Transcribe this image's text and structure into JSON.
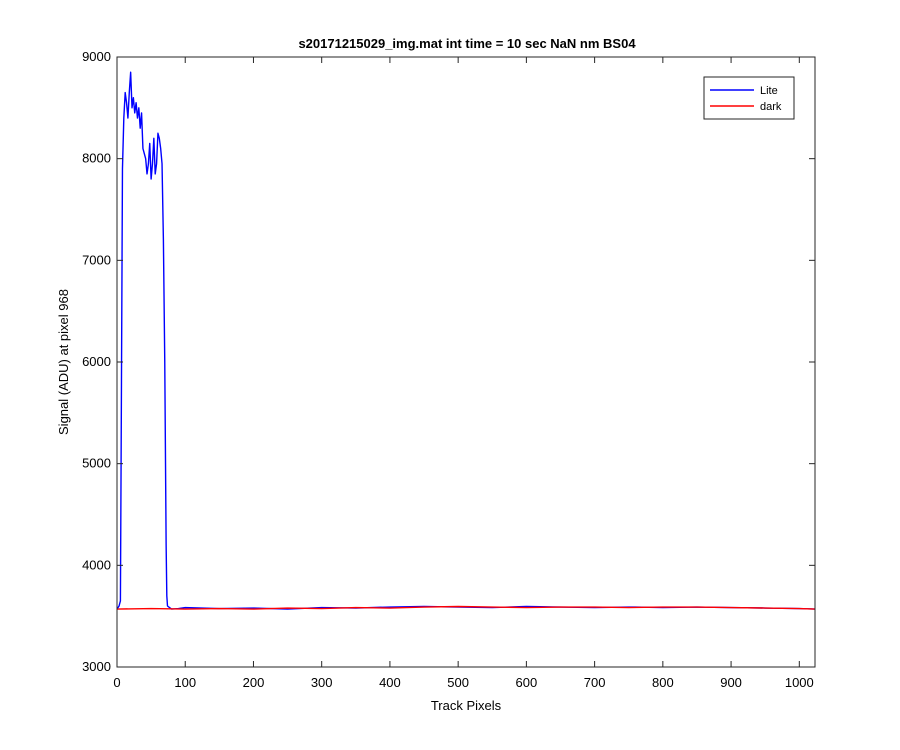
{
  "chart_data": {
    "type": "line",
    "title": "s20171215029_img.mat int time = 10 sec  NaN nm BS04",
    "xlabel": "Track Pixels",
    "ylabel": "Signal (ADU) at pixel 968",
    "xlim": [
      0,
      1023
    ],
    "ylim": [
      3000,
      9000
    ],
    "xticks": [
      0,
      100,
      200,
      300,
      400,
      500,
      600,
      700,
      800,
      900,
      1000
    ],
    "xtick_labels": [
      "0",
      "100",
      "200",
      "300",
      "400",
      "500",
      "600",
      "700",
      "800",
      "900",
      "1000"
    ],
    "yticks": [
      3000,
      4000,
      5000,
      6000,
      7000,
      8000,
      9000
    ],
    "ytick_labels": [
      "3000",
      "4000",
      "5000",
      "6000",
      "7000",
      "8000",
      "9000"
    ],
    "grid": false,
    "legend_position": "top-right",
    "series": [
      {
        "name": "Lite",
        "color": "#0000ff",
        "x": [
          0,
          3,
          5,
          6,
          8,
          10,
          12,
          14,
          16,
          18,
          20,
          22,
          24,
          26,
          28,
          30,
          32,
          34,
          36,
          38,
          40,
          42,
          44,
          46,
          48,
          50,
          52,
          54,
          56,
          58,
          60,
          62,
          64,
          66,
          68,
          70,
          72,
          73,
          74,
          76,
          78,
          80,
          90,
          100,
          150,
          200,
          250,
          300,
          350,
          400,
          450,
          500,
          550,
          600,
          650,
          700,
          750,
          800,
          850,
          900,
          950,
          1000,
          1023
        ],
        "y": [
          3570,
          3600,
          3650,
          5000,
          7900,
          8400,
          8650,
          8550,
          8400,
          8650,
          8850,
          8500,
          8600,
          8450,
          8550,
          8400,
          8500,
          8300,
          8450,
          8100,
          8050,
          8000,
          7850,
          7950,
          8150,
          7800,
          7950,
          8200,
          7850,
          7950,
          8250,
          8200,
          8100,
          7950,
          7200,
          6000,
          4200,
          3700,
          3600,
          3590,
          3580,
          3570,
          3575,
          3585,
          3575,
          3580,
          3570,
          3585,
          3580,
          3590,
          3595,
          3590,
          3585,
          3595,
          3590,
          3585,
          3590,
          3585,
          3590,
          3585,
          3580,
          3575,
          3570
        ]
      },
      {
        "name": "dark",
        "color": "#ff0000",
        "x": [
          0,
          50,
          100,
          150,
          200,
          250,
          300,
          350,
          400,
          450,
          500,
          550,
          600,
          650,
          700,
          750,
          800,
          850,
          900,
          950,
          1000,
          1023
        ],
        "y": [
          3570,
          3575,
          3570,
          3575,
          3570,
          3580,
          3575,
          3585,
          3580,
          3590,
          3595,
          3590,
          3585,
          3590,
          3590,
          3585,
          3590,
          3590,
          3585,
          3580,
          3575,
          3570
        ]
      }
    ]
  }
}
